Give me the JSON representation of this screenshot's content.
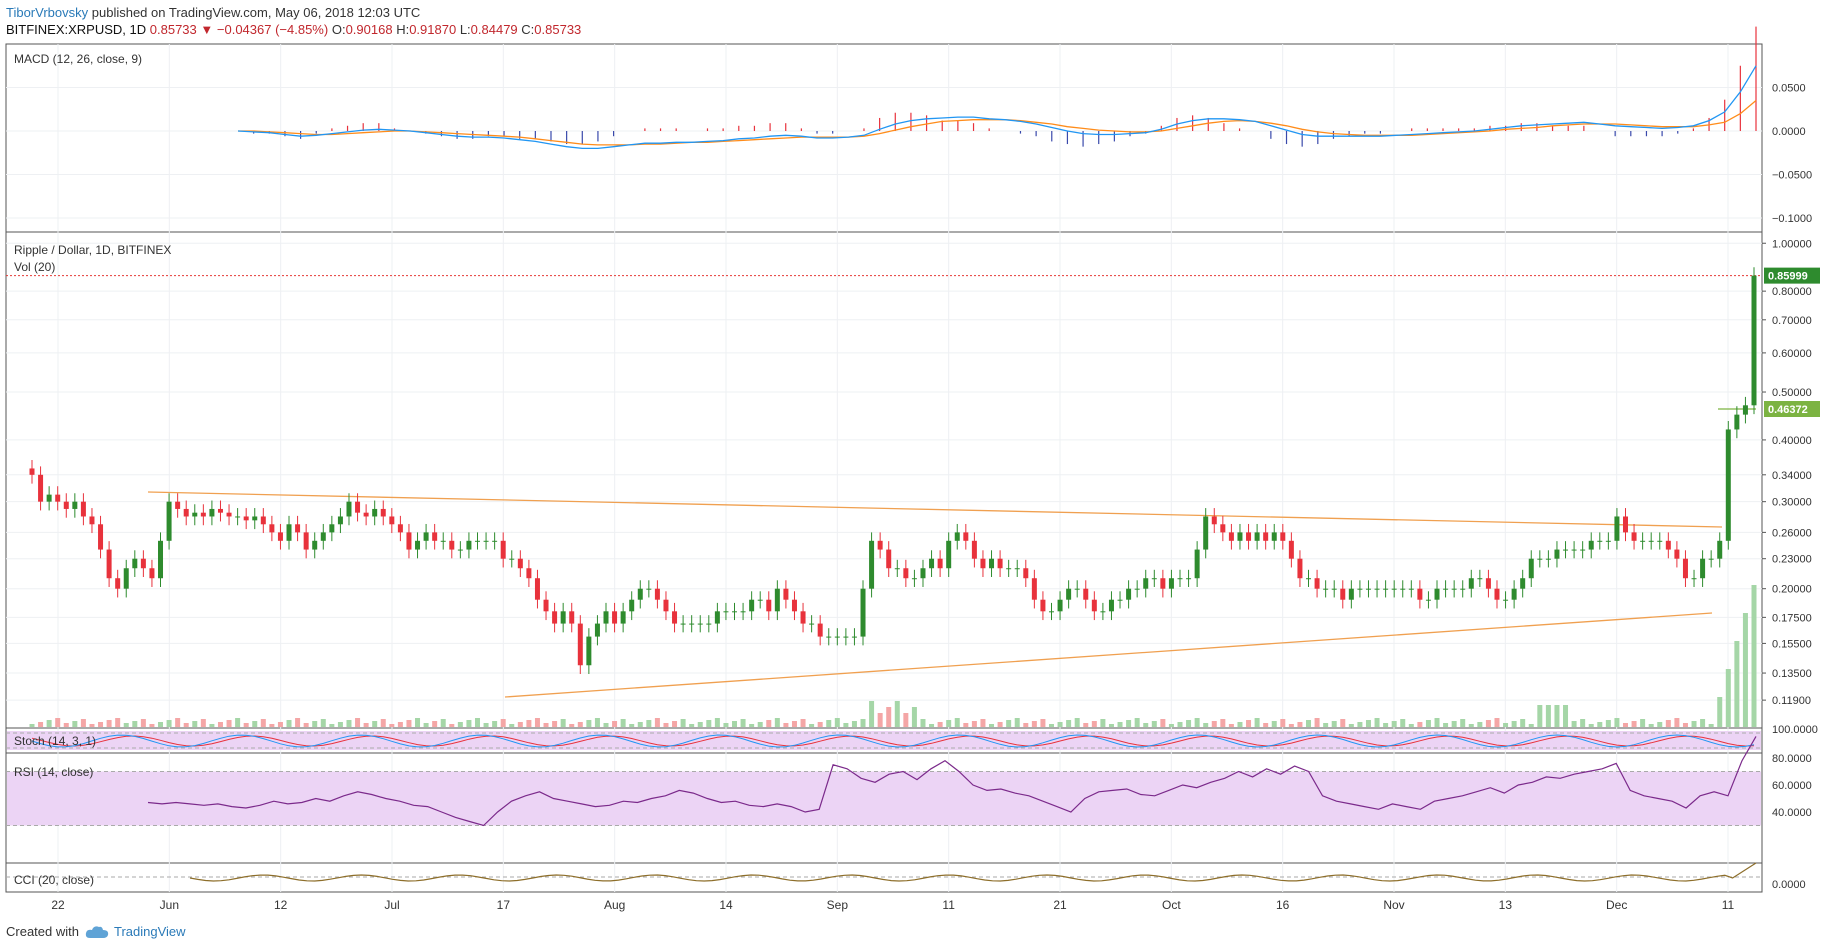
{
  "header": {
    "author": "TiborVrbovsky",
    "published": "published on TradingView.com, May 06, 2018 12:03 UTC",
    "symbol": "BITFINEX:XRPUSD, 1D",
    "last": "0.85733",
    "change_arrow": "▼",
    "change": "−0.04367 (−4.85%)",
    "o_label": "O:",
    "o": "0.90168",
    "h_label": "H:",
    "h": "0.91870",
    "l_label": "L:",
    "l": "0.84479",
    "c_label": "C:",
    "c": "0.85733"
  },
  "footer": {
    "created_with": "Created with",
    "brand": "TradingView"
  },
  "colors": {
    "up": "#2e8b2e",
    "down": "#e8323c",
    "macd": "#2196f3",
    "signal": "#ff8c1a",
    "trend": "#f0a050",
    "osc": "#7b2a8b",
    "band": "#ecd4f5"
  },
  "chart_data": {
    "type": "candlestick",
    "title": "Ripple / Dollar, 1D, BITFINEX",
    "x_tick_labels": [
      "22",
      "Jun",
      "12",
      "Jul",
      "17",
      "Aug",
      "14",
      "Sep",
      "11",
      "21",
      "Oct",
      "16",
      "Nov",
      "13",
      "Dec",
      "11"
    ],
    "price_axis": {
      "scale": "log",
      "ticks": [
        "1.00000",
        "0.80000",
        "0.70000",
        "0.60000",
        "0.50000",
        "0.40000",
        "0.34000",
        "0.30000",
        "0.26000",
        "0.23000",
        "0.20000",
        "0.17500",
        "0.15500",
        "0.13500",
        "0.11900"
      ],
      "last_price_label": "0.85999",
      "level_label": "0.46372"
    },
    "price_close": [
      0.34,
      0.3,
      0.31,
      0.3,
      0.29,
      0.3,
      0.28,
      0.27,
      0.24,
      0.21,
      0.2,
      0.22,
      0.23,
      0.22,
      0.21,
      0.25,
      0.3,
      0.29,
      0.28,
      0.285,
      0.28,
      0.29,
      0.285,
      0.28,
      0.28,
      0.275,
      0.28,
      0.27,
      0.26,
      0.25,
      0.27,
      0.26,
      0.24,
      0.25,
      0.26,
      0.27,
      0.28,
      0.3,
      0.285,
      0.28,
      0.29,
      0.28,
      0.27,
      0.26,
      0.24,
      0.25,
      0.26,
      0.25,
      0.25,
      0.24,
      0.24,
      0.25,
      0.25,
      0.25,
      0.25,
      0.23,
      0.23,
      0.22,
      0.21,
      0.19,
      0.18,
      0.17,
      0.18,
      0.17,
      0.14,
      0.16,
      0.17,
      0.18,
      0.17,
      0.18,
      0.19,
      0.2,
      0.2,
      0.19,
      0.18,
      0.17,
      0.17,
      0.17,
      0.17,
      0.17,
      0.18,
      0.18,
      0.18,
      0.18,
      0.19,
      0.19,
      0.18,
      0.2,
      0.19,
      0.18,
      0.17,
      0.17,
      0.16,
      0.16,
      0.16,
      0.16,
      0.16,
      0.2,
      0.25,
      0.24,
      0.22,
      0.22,
      0.21,
      0.21,
      0.22,
      0.23,
      0.22,
      0.25,
      0.26,
      0.25,
      0.23,
      0.22,
      0.23,
      0.22,
      0.22,
      0.22,
      0.21,
      0.19,
      0.18,
      0.18,
      0.19,
      0.2,
      0.2,
      0.19,
      0.18,
      0.18,
      0.19,
      0.19,
      0.2,
      0.2,
      0.21,
      0.21,
      0.2,
      0.21,
      0.21,
      0.21,
      0.24,
      0.28,
      0.27,
      0.26,
      0.25,
      0.26,
      0.25,
      0.26,
      0.25,
      0.26,
      0.25,
      0.23,
      0.21,
      0.21,
      0.2,
      0.2,
      0.2,
      0.19,
      0.2,
      0.2,
      0.2,
      0.2,
      0.2,
      0.2,
      0.2,
      0.2,
      0.19,
      0.19,
      0.2,
      0.2,
      0.2,
      0.2,
      0.21,
      0.21,
      0.2,
      0.19,
      0.19,
      0.2,
      0.21,
      0.23,
      0.23,
      0.23,
      0.24,
      0.24,
      0.24,
      0.24,
      0.25,
      0.25,
      0.25,
      0.28,
      0.26,
      0.25,
      0.25,
      0.25,
      0.25,
      0.24,
      0.23,
      0.21,
      0.21,
      0.23,
      0.23,
      0.25,
      0.42,
      0.45,
      0.47,
      0.86
    ],
    "macd_axis": [
      "0.0500",
      "0.0000",
      "−0.0500",
      "−0.1000"
    ],
    "macd_line": [
      0,
      -0.001,
      -0.002,
      -0.004,
      -0.006,
      -0.005,
      -0.003,
      -0.001,
      0.001,
      0.002,
      0.001,
      0,
      -0.002,
      -0.004,
      -0.006,
      -0.007,
      -0.007,
      -0.008,
      -0.01,
      -0.012,
      -0.015,
      -0.018,
      -0.02,
      -0.02,
      -0.018,
      -0.016,
      -0.014,
      -0.014,
      -0.013,
      -0.013,
      -0.012,
      -0.011,
      -0.009,
      -0.008,
      -0.006,
      -0.005,
      -0.006,
      -0.008,
      -0.008,
      -0.007,
      -0.005,
      0.002,
      0.008,
      0.012,
      0.014,
      0.015,
      0.016,
      0.016,
      0.014,
      0.013,
      0.011,
      0.008,
      0.004,
      0,
      -0.003,
      -0.004,
      -0.004,
      -0.003,
      -0.002,
      0.002,
      0.008,
      0.012,
      0.014,
      0.014,
      0.013,
      0.011,
      0.006,
      0.001,
      -0.004,
      -0.006,
      -0.006,
      -0.006,
      -0.006,
      -0.006,
      -0.005,
      -0.004,
      -0.003,
      -0.002,
      -0.001,
      0,
      0.002,
      0.004,
      0.006,
      0.007,
      0.008,
      0.009,
      0.01,
      0.008,
      0.006,
      0.005,
      0.004,
      0.003,
      0.004,
      0.006,
      0.012,
      0.022,
      0.045,
      0.075
    ],
    "signal_line": [
      0,
      0,
      -0.001,
      -0.002,
      -0.003,
      -0.004,
      -0.004,
      -0.003,
      -0.002,
      -0.001,
      0,
      0,
      -0.001,
      -0.002,
      -0.003,
      -0.004,
      -0.005,
      -0.006,
      -0.007,
      -0.009,
      -0.011,
      -0.013,
      -0.015,
      -0.016,
      -0.016,
      -0.016,
      -0.015,
      -0.015,
      -0.014,
      -0.013,
      -0.013,
      -0.012,
      -0.011,
      -0.01,
      -0.009,
      -0.008,
      -0.007,
      -0.007,
      -0.007,
      -0.007,
      -0.006,
      -0.003,
      0.001,
      0.005,
      0.008,
      0.011,
      0.012,
      0.013,
      0.013,
      0.013,
      0.012,
      0.01,
      0.008,
      0.005,
      0.003,
      0.001,
      0,
      -0.001,
      -0.001,
      0,
      0.003,
      0.006,
      0.009,
      0.011,
      0.012,
      0.011,
      0.009,
      0.006,
      0.002,
      -0.001,
      -0.003,
      -0.004,
      -0.005,
      -0.005,
      -0.005,
      -0.005,
      -0.004,
      -0.003,
      -0.002,
      -0.001,
      0,
      0.002,
      0.003,
      0.004,
      0.006,
      0.007,
      0.008,
      0.008,
      0.008,
      0.007,
      0.006,
      0.005,
      0.005,
      0.005,
      0.007,
      0.01,
      0.02,
      0.035
    ],
    "rsi_axis": [
      "80.0000",
      "60.0000",
      "40.0000"
    ],
    "rsi_values": [
      47,
      46,
      47,
      46,
      45,
      46,
      44,
      43,
      45,
      48,
      46,
      47,
      50,
      48,
      52,
      55,
      53,
      50,
      48,
      45,
      44,
      40,
      36,
      33,
      30,
      40,
      48,
      52,
      55,
      50,
      48,
      46,
      44,
      45,
      48,
      47,
      50,
      52,
      56,
      54,
      50,
      47,
      48,
      45,
      44,
      46,
      44,
      40,
      42,
      75,
      72,
      65,
      62,
      68,
      70,
      64,
      72,
      78,
      70,
      60,
      56,
      57,
      54,
      52,
      48,
      44,
      40,
      50,
      55,
      56,
      57,
      53,
      52,
      56,
      60,
      58,
      62,
      65,
      70,
      66,
      72,
      68,
      74,
      70,
      52,
      48,
      46,
      44,
      42,
      46,
      44,
      42,
      48,
      50,
      52,
      55,
      58,
      54,
      60,
      62,
      66,
      65,
      68,
      70,
      72,
      76,
      56,
      52,
      50,
      48,
      43,
      52,
      55,
      52,
      78,
      96
    ],
    "macd_label": "MACD (12, 26, close, 9)",
    "price_label": "Ripple / Dollar, 1D, BITFINEX",
    "vol_label": "Vol (20)",
    "stoch_label": "Stoch (14, 3, 1)",
    "stoch_axis": "100.0000",
    "rsi_label": "RSI (14, close)",
    "cci_label": "CCI (20, close)",
    "cci_axis": "0.0000"
  }
}
